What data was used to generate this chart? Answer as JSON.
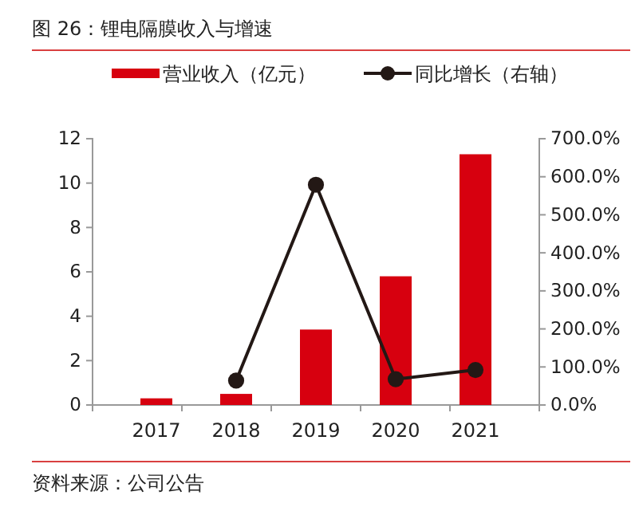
{
  "chart_data": {
    "type": "bar",
    "title": "图 26：锂电隔膜收入与增速",
    "categories": [
      "2017",
      "2018",
      "2019",
      "2020",
      "2021"
    ],
    "series": [
      {
        "name": "营业收入（亿元）",
        "color": "#d7000f",
        "values": [
          0.3,
          0.5,
          3.4,
          5.8,
          11.3
        ]
      },
      {
        "name": "同比增长（右轴）",
        "type": "line",
        "axis": "y2",
        "color": "#231815",
        "marker": "circle",
        "values": [
          null,
          64,
          579,
          68,
          92
        ]
      }
    ],
    "ylim": [
      0,
      12
    ],
    "yticks": [
      0,
      2,
      4,
      6,
      8,
      10,
      12
    ],
    "y2lim": [
      0,
      700
    ],
    "y2ticks": [
      {
        "value": 0,
        "label": "0.0%"
      },
      {
        "value": 100,
        "label": "100.0%"
      },
      {
        "value": 200,
        "label": "200.0%"
      },
      {
        "value": 300,
        "label": "300.0%"
      },
      {
        "value": 400,
        "label": "400.0%"
      },
      {
        "value": 500,
        "label": "500.0%"
      },
      {
        "value": 600,
        "label": "600.0%"
      },
      {
        "value": 700,
        "label": "700.0%"
      }
    ],
    "legend": "top",
    "grid": false,
    "annotations": [
      "资料来源：公司公告"
    ]
  }
}
